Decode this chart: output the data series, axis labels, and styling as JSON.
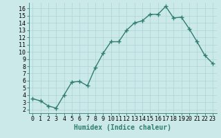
{
  "x": [
    0,
    1,
    2,
    3,
    4,
    5,
    6,
    7,
    8,
    9,
    10,
    11,
    12,
    13,
    14,
    15,
    16,
    17,
    18,
    19,
    20,
    21,
    22,
    23
  ],
  "y": [
    3.5,
    3.2,
    2.5,
    2.2,
    4.0,
    5.8,
    5.9,
    5.3,
    7.8,
    9.8,
    11.4,
    11.4,
    13.0,
    14.0,
    14.3,
    15.2,
    15.2,
    16.3,
    14.7,
    14.8,
    13.2,
    11.4,
    9.5,
    8.4
  ],
  "line_color": "#2e7d6e",
  "marker": "+",
  "markersize": 4,
  "markeredgewidth": 1.0,
  "linewidth": 1.0,
  "bg_color": "#cce9e9",
  "grid_color": "#aad4d4",
  "xlabel": "Humidex (Indice chaleur)",
  "xlabel_fontsize": 7,
  "tick_fontsize": 6,
  "xlim": [
    -0.5,
    23.5
  ],
  "ylim": [
    1.5,
    16.8
  ],
  "yticks": [
    2,
    3,
    4,
    5,
    6,
    7,
    8,
    9,
    10,
    11,
    12,
    13,
    14,
    15,
    16
  ],
  "xticks": [
    0,
    1,
    2,
    3,
    4,
    5,
    6,
    7,
    8,
    9,
    10,
    11,
    12,
    13,
    14,
    15,
    16,
    17,
    18,
    19,
    20,
    21,
    22,
    23
  ]
}
